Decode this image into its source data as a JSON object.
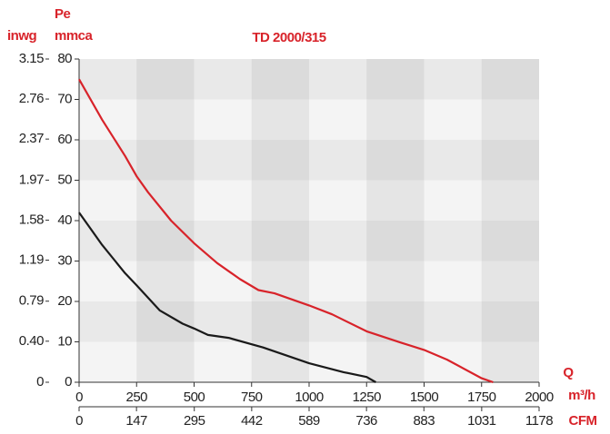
{
  "chart_data": {
    "type": "line",
    "title": "TD 2000/315",
    "y_label": "Pe",
    "y2_unit": "inwg",
    "y_unit": "mmca",
    "x_label": "Q",
    "x_unit": "m³/h",
    "x2_unit": "CFM",
    "xlim": [
      0,
      2000
    ],
    "xticks": [
      0,
      250,
      500,
      750,
      1000,
      1250,
      1500,
      1750,
      2000
    ],
    "x2lim": [
      0,
      1178
    ],
    "x2ticks": [
      0,
      147,
      295,
      442,
      589,
      736,
      883,
      1031,
      1178
    ],
    "ylim": [
      0,
      80
    ],
    "yticks": [
      0,
      10,
      20,
      30,
      40,
      50,
      60,
      70,
      80
    ],
    "y2lim": [
      0,
      3.15
    ],
    "y2ticks": [
      0,
      {
        "value": 0.4,
        "label": "0.40"
      },
      0.79,
      1.19,
      1.58,
      1.97,
      2.37,
      2.76,
      3.15
    ],
    "series": [
      {
        "color": "#d8232a",
        "x": [
          0,
          100,
          200,
          250,
          300,
          400,
          500,
          600,
          700,
          780,
          850,
          1000,
          1100,
          1250,
          1400,
          1500,
          1600,
          1750,
          1800
        ],
        "values": [
          75,
          65,
          56,
          51,
          47,
          40,
          34.4,
          29.5,
          25.5,
          22.8,
          22,
          19,
          16.8,
          12.6,
          9.8,
          8,
          5.6,
          1,
          0
        ]
      },
      {
        "color": "#1a1a1a",
        "x": [
          0,
          100,
          200,
          250,
          350,
          450,
          500,
          560,
          650,
          800,
          1000,
          1150,
          1250,
          1290
        ],
        "values": [
          42,
          34,
          27,
          24,
          17.8,
          14.5,
          13.3,
          11.7,
          11,
          8.6,
          4.7,
          2.5,
          1.3,
          0
        ]
      }
    ]
  }
}
